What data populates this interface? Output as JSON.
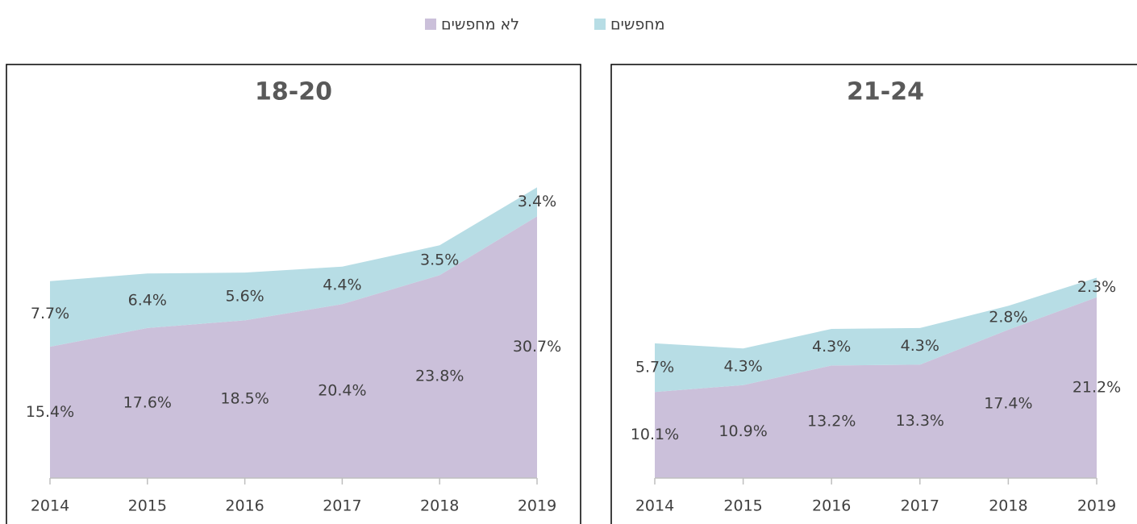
{
  "chart_data": [
    {
      "type": "area",
      "title": "18-20",
      "categories": [
        "2014",
        "2015",
        "2016",
        "2017",
        "2018",
        "2019"
      ],
      "series": [
        {
          "name": "לא מחפשים",
          "color": "#cbc0da",
          "values": [
            15.4,
            17.6,
            18.5,
            20.4,
            23.8,
            30.7
          ],
          "value_labels": [
            "15.4%",
            "17.6%",
            "18.5%",
            "20.4%",
            "23.8%",
            "30.7%"
          ]
        },
        {
          "name": "מחפשים",
          "color": "#b7dde5",
          "values": [
            7.7,
            6.4,
            5.6,
            4.4,
            3.5,
            3.4
          ],
          "value_labels": [
            "7.7%",
            "6.4%",
            "5.6%",
            "4.4%",
            "3.5%",
            "3.4%"
          ]
        }
      ],
      "ylim": [
        0,
        40
      ],
      "stacked": true
    },
    {
      "type": "area",
      "title": "21-24",
      "categories": [
        "2014",
        "2015",
        "2016",
        "2017",
        "2018",
        "2019"
      ],
      "series": [
        {
          "color": "#cbc0da",
          "values": [
            10.1,
            10.9,
            13.2,
            13.3,
            17.4,
            21.2
          ],
          "value_labels": [
            "10.1%",
            "10.9%",
            "13.2%",
            "13.3%",
            "17.4%",
            "21.2%"
          ]
        },
        {
          "color": "#b7dde5",
          "values": [
            5.7,
            4.3,
            4.3,
            4.3,
            2.8,
            2.3
          ],
          "value_labels": [
            "5.7%",
            "4.3%",
            "4.3%",
            "4.3%",
            "2.8%",
            "2.3%"
          ]
        }
      ],
      "ylim": [
        0,
        40
      ],
      "stacked": true
    }
  ]
}
